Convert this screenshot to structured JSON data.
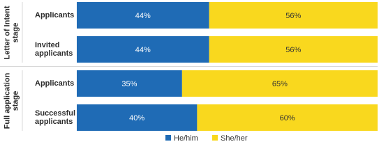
{
  "chart_data": {
    "type": "stacked-bar-horizontal",
    "groups": [
      {
        "label": "Letter of Intent stage",
        "categories": [
          "Applicants",
          "Invited applicants"
        ]
      },
      {
        "label": "Full application stage",
        "categories": [
          "Applicants",
          "Successful applicants"
        ]
      }
    ],
    "series": [
      {
        "name": "He/him",
        "color": "#1f6bb5",
        "values": [
          44,
          44,
          35,
          40
        ],
        "value_labels": [
          "44%",
          "44%",
          "35%",
          "40%"
        ]
      },
      {
        "name": "She/her",
        "color": "#f9d81e",
        "values": [
          56,
          56,
          65,
          60
        ],
        "value_labels": [
          "56%",
          "56%",
          "65%",
          "60%"
        ]
      }
    ],
    "xlim": [
      0,
      100
    ],
    "legend": "bottom"
  }
}
